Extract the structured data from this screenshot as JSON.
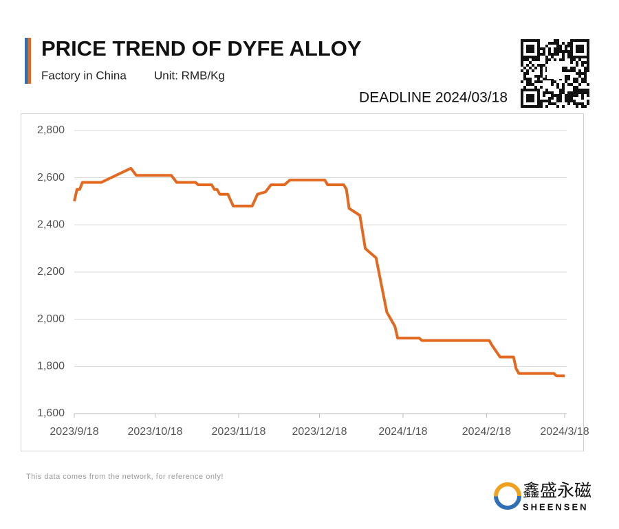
{
  "chart_data": {
    "type": "line",
    "title": "PRICE TREND OF DYFE ALLOY",
    "subtitle": "Factory in China",
    "unit": "Unit: RMB/Kg",
    "deadline": "DEADLINE 2024/03/18",
    "footnote": "This data comes from the network, for reference only!",
    "brand": {
      "name": "鑫盛永磁",
      "latin": "SHEENSEN"
    },
    "x": [
      "2023-09-18",
      "2023-09-19",
      "2023-09-20",
      "2023-09-21",
      "2023-09-28",
      "2023-10-09",
      "2023-10-11",
      "2023-10-24",
      "2023-10-26",
      "2023-11-02",
      "2023-11-03",
      "2023-11-08",
      "2023-11-09",
      "2023-11-10",
      "2023-11-11",
      "2023-11-14",
      "2023-11-16",
      "2023-11-23",
      "2023-11-25",
      "2023-11-28",
      "2023-11-30",
      "2023-12-05",
      "2023-12-07",
      "2023-12-20",
      "2023-12-21",
      "2023-12-27",
      "2023-12-28",
      "2023-12-29",
      "2024-01-02",
      "2024-01-04",
      "2024-01-08",
      "2024-01-12",
      "2024-01-15",
      "2024-01-16",
      "2024-01-24",
      "2024-01-25",
      "2024-02-19",
      "2024-02-20",
      "2024-02-23",
      "2024-02-28",
      "2024-02-29",
      "2024-03-01",
      "2024-03-14",
      "2024-03-15",
      "2024-03-18"
    ],
    "series": [
      {
        "color": "#e2691f",
        "values": [
          2500,
          2550,
          2550,
          2580,
          2580,
          2640,
          2610,
          2610,
          2580,
          2580,
          2570,
          2570,
          2550,
          2550,
          2530,
          2530,
          2480,
          2480,
          2530,
          2540,
          2570,
          2570,
          2590,
          2590,
          2570,
          2570,
          2550,
          2470,
          2440,
          2300,
          2260,
          2030,
          1970,
          1920,
          1920,
          1910,
          1910,
          1890,
          1840,
          1840,
          1790,
          1770,
          1770,
          1760,
          1760
        ]
      }
    ],
    "xlim": [
      "2023-09-18",
      "2024-03-18"
    ],
    "xticks": [
      {
        "value": "2023-09-18",
        "label": "2023/9/18"
      },
      {
        "value": "2023-10-18",
        "label": "2023/10/18"
      },
      {
        "value": "2023-11-18",
        "label": "2023/11/18"
      },
      {
        "value": "2023-12-18",
        "label": "2023/12/18"
      },
      {
        "value": "2024-01-18",
        "label": "2024/1/18"
      },
      {
        "value": "2024-02-18",
        "label": "2024/2/18"
      },
      {
        "value": "2024-03-18",
        "label": "2024/3/18"
      }
    ],
    "ylim": [
      1600,
      2800
    ],
    "yticks": [
      {
        "value": 1600,
        "label": "1,600"
      },
      {
        "value": 1800,
        "label": "1,800"
      },
      {
        "value": 2000,
        "label": "2,000"
      },
      {
        "value": 2200,
        "label": "2,200"
      },
      {
        "value": 2400,
        "label": "2,400"
      },
      {
        "value": 2600,
        "label": "2,600"
      },
      {
        "value": 2800,
        "label": "2,800"
      }
    ],
    "grid": true
  }
}
